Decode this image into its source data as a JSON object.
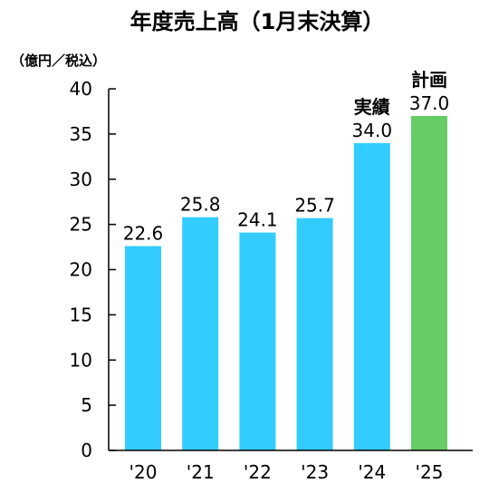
{
  "chart_data": {
    "type": "bar",
    "title": "年度売上高（1月末決算）",
    "unit_label": "（億円／税込）",
    "categories": [
      "'20",
      "'21",
      "'22",
      "'23",
      "'24",
      "'25"
    ],
    "values": [
      22.6,
      25.8,
      24.1,
      25.7,
      34.0,
      37.0
    ],
    "value_labels": [
      "22.6",
      "25.8",
      "24.1",
      "25.7",
      "34.0",
      "37.0"
    ],
    "bar_colors": [
      "#33ccff",
      "#33ccff",
      "#33ccff",
      "#33ccff",
      "#33ccff",
      "#66cc66"
    ],
    "annotations": [
      "",
      "",
      "",
      "",
      "実績",
      "計画"
    ],
    "ylim": [
      0,
      40
    ],
    "yticks": [
      0,
      5,
      10,
      15,
      20,
      25,
      30,
      35,
      40
    ],
    "grid": false,
    "legend": "none",
    "colors": {
      "actual": "#33ccff",
      "plan": "#66cc66",
      "axis": "#000000",
      "text": "#000000"
    }
  }
}
